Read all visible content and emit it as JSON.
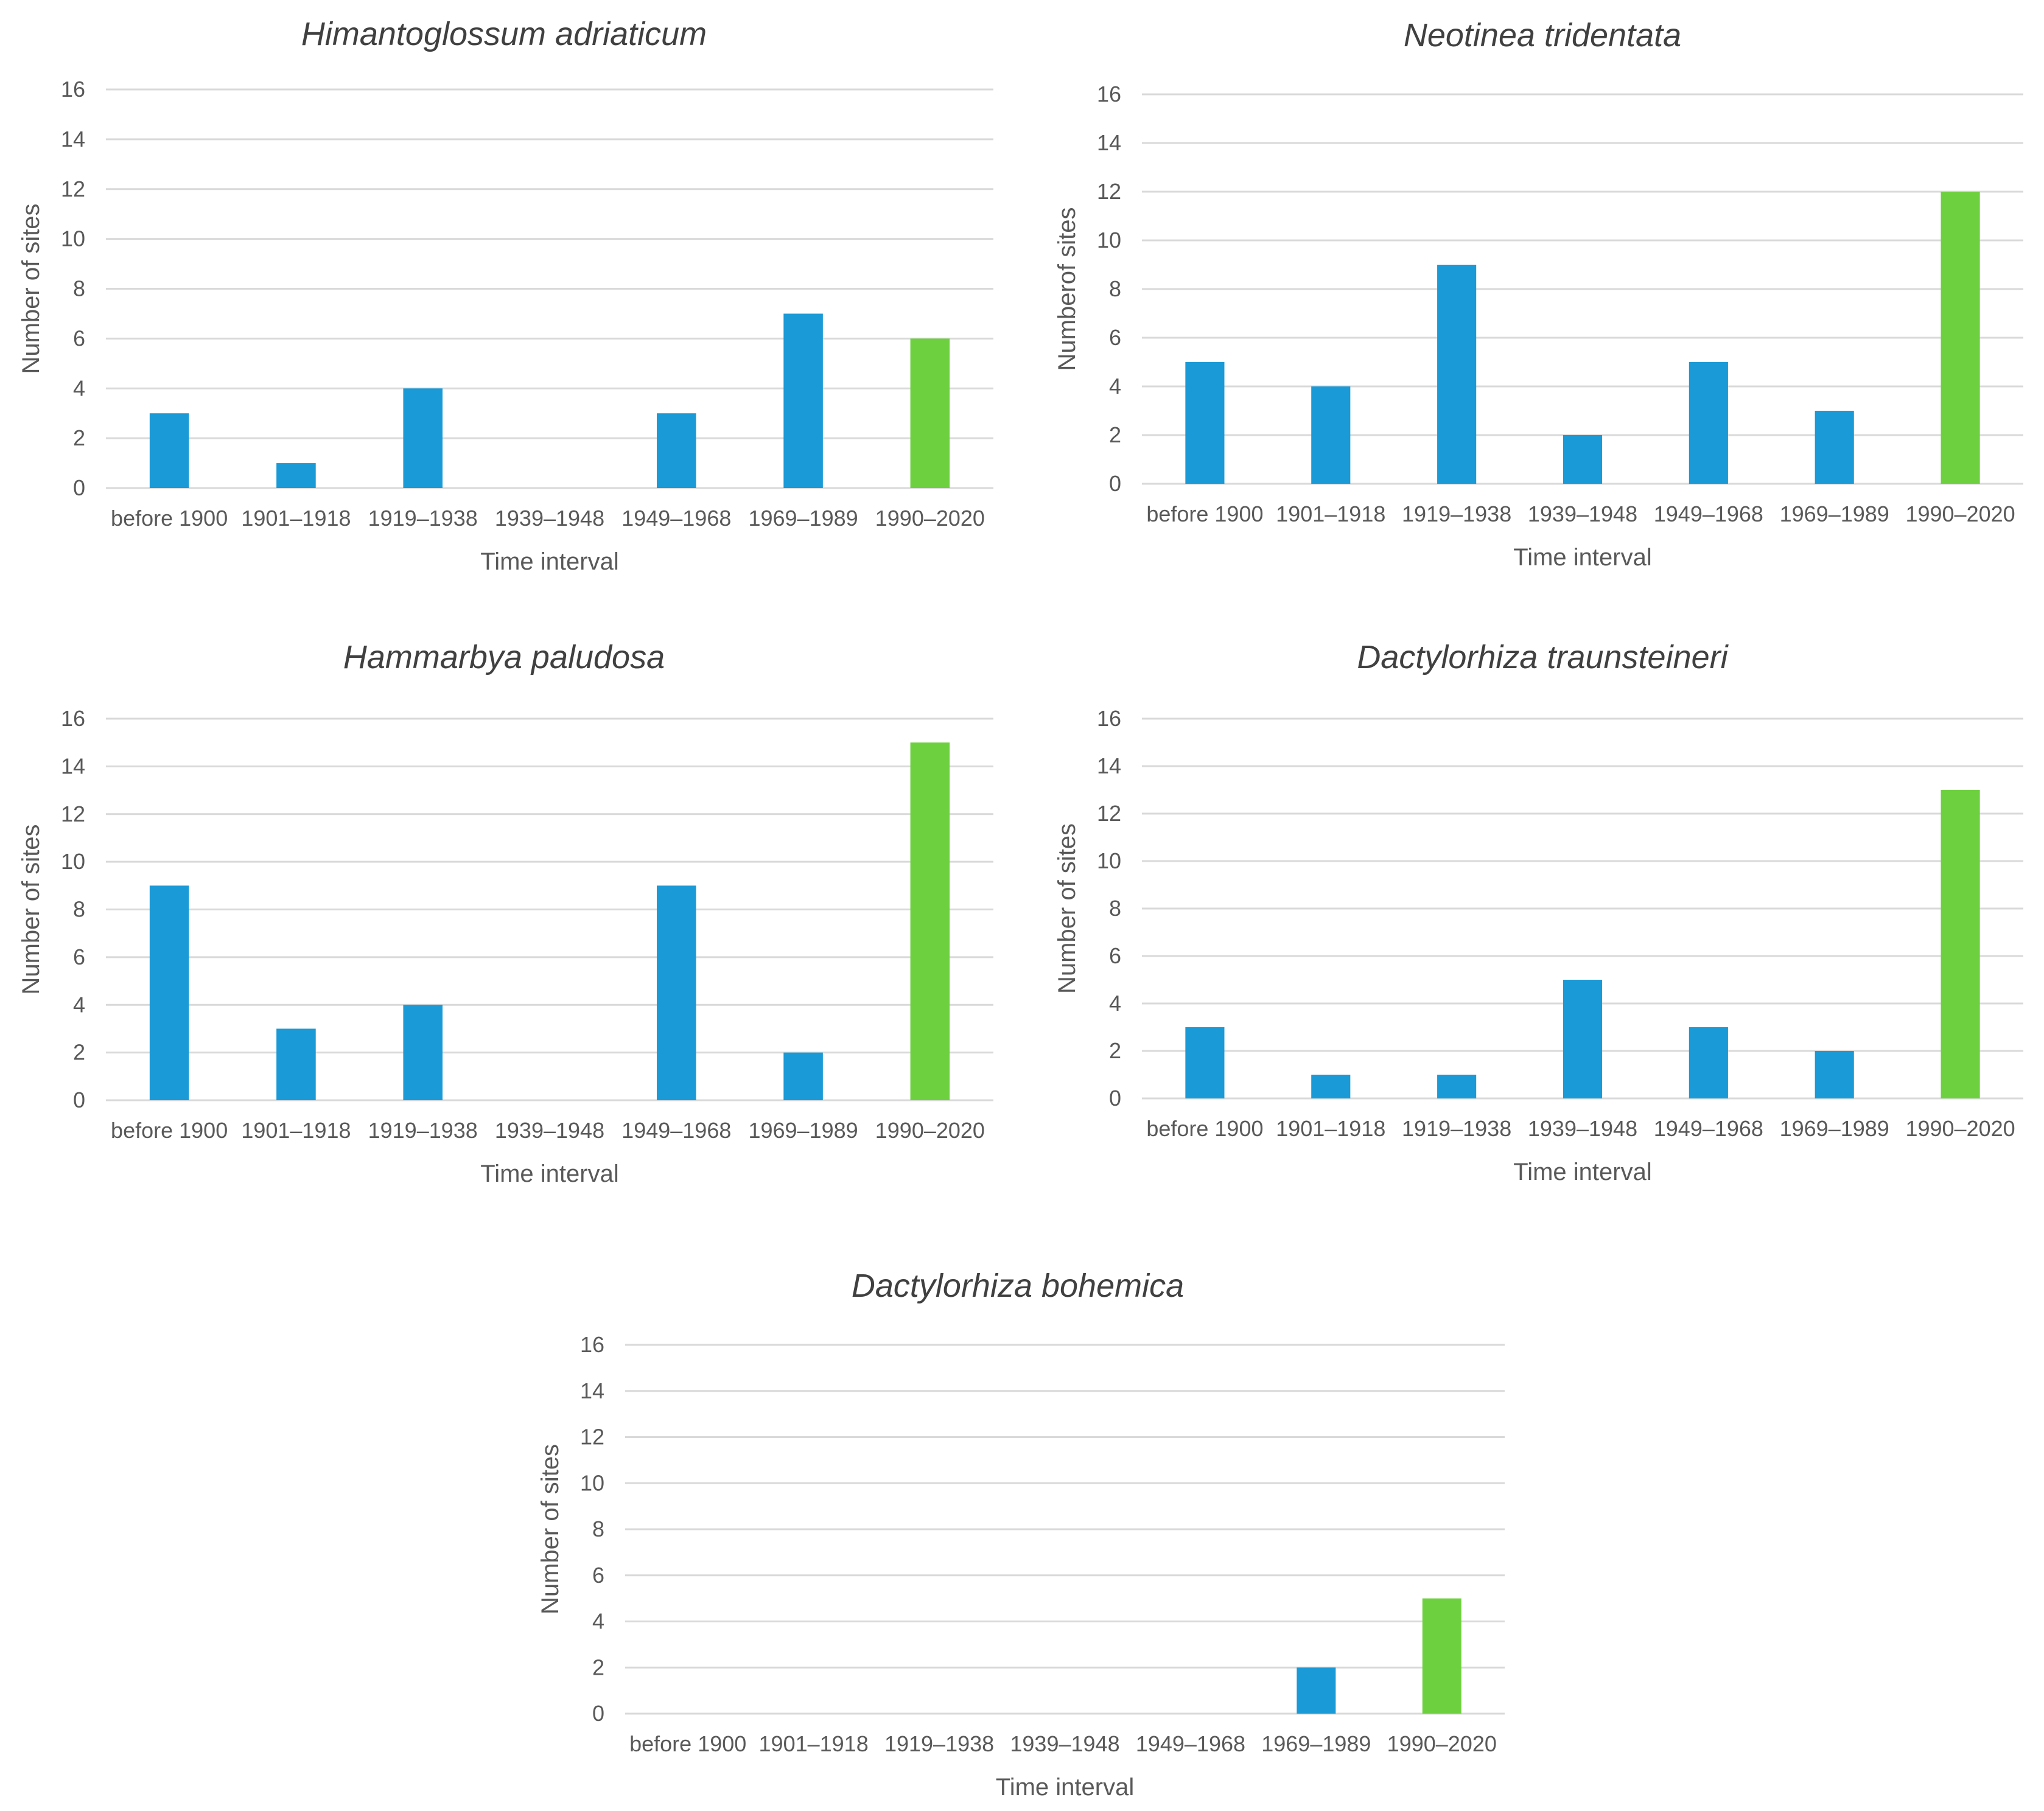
{
  "chart_data": [
    {
      "type": "bar",
      "title": "Himantoglossum adriaticum",
      "xlabel": "Time interval",
      "ylabel": "Number of sites",
      "ylim": [
        0,
        16
      ],
      "yticks": [
        "0",
        "2",
        "4",
        "6",
        "8",
        "10",
        "12",
        "14",
        "16"
      ],
      "categories": [
        "before 1900",
        "1901–1918",
        "1919–1938",
        "1939–1948",
        "1949–1968",
        "1969–1989",
        "1990–2020"
      ],
      "values": [
        3,
        1,
        4,
        0,
        3,
        7,
        6
      ],
      "colors": [
        "#1a9ad6",
        "#1a9ad6",
        "#1a9ad6",
        "#1a9ad6",
        "#1a9ad6",
        "#1a9ad6",
        "#6dd13f"
      ]
    },
    {
      "type": "bar",
      "title": "Neotinea tridentata",
      "xlabel": "Time interval",
      "ylabel": "Numberof sites",
      "ylim": [
        0,
        16
      ],
      "yticks": [
        "0",
        "2",
        "4",
        "6",
        "8",
        "10",
        "12",
        "14",
        "16"
      ],
      "categories": [
        "before 1900",
        "1901–1918",
        "1919–1938",
        "1939–1948",
        "1949–1968",
        "1969–1989",
        "1990–2020"
      ],
      "values": [
        5,
        4,
        9,
        2,
        5,
        3,
        12
      ],
      "colors": [
        "#1a9ad6",
        "#1a9ad6",
        "#1a9ad6",
        "#1a9ad6",
        "#1a9ad6",
        "#1a9ad6",
        "#6dd13f"
      ]
    },
    {
      "type": "bar",
      "title": "Hammarbya paludosa",
      "xlabel": "Time interval",
      "ylabel": "Number of sites",
      "ylim": [
        0,
        16
      ],
      "yticks": [
        "0",
        "2",
        "4",
        "6",
        "8",
        "10",
        "12",
        "14",
        "16"
      ],
      "categories": [
        "before 1900",
        "1901–1918",
        "1919–1938",
        "1939–1948",
        "1949–1968",
        "1969–1989",
        "1990–2020"
      ],
      "values": [
        9,
        3,
        4,
        0,
        9,
        2,
        15
      ],
      "colors": [
        "#1a9ad6",
        "#1a9ad6",
        "#1a9ad6",
        "#1a9ad6",
        "#1a9ad6",
        "#1a9ad6",
        "#6dd13f"
      ]
    },
    {
      "type": "bar",
      "title": "Dactylorhiza traunsteineri",
      "xlabel": "Time interval",
      "ylabel": "Number of sites",
      "ylim": [
        0,
        16
      ],
      "yticks": [
        "0",
        "2",
        "4",
        "6",
        "8",
        "10",
        "12",
        "14",
        "16"
      ],
      "categories": [
        "before 1900",
        "1901–1918",
        "1919–1938",
        "1939–1948",
        "1949–1968",
        "1969–1989",
        "1990–2020"
      ],
      "values": [
        3,
        1,
        1,
        5,
        3,
        2,
        13
      ],
      "colors": [
        "#1a9ad6",
        "#1a9ad6",
        "#1a9ad6",
        "#1a9ad6",
        "#1a9ad6",
        "#1a9ad6",
        "#6dd13f"
      ]
    },
    {
      "type": "bar",
      "title": "Dactylorhiza bohemica",
      "xlabel": "Time interval",
      "ylabel": "Number of sites",
      "ylim": [
        0,
        16
      ],
      "yticks": [
        "0",
        "2",
        "4",
        "6",
        "8",
        "10",
        "12",
        "14",
        "16"
      ],
      "categories": [
        "before 1900",
        "1901–1918",
        "1919–1938",
        "1939–1948",
        "1949–1968",
        "1969–1989",
        "1990–2020"
      ],
      "values": [
        0,
        0,
        0,
        0,
        0,
        2,
        5
      ],
      "colors": [
        "#1a9ad6",
        "#1a9ad6",
        "#1a9ad6",
        "#1a9ad6",
        "#1a9ad6",
        "#1a9ad6",
        "#6dd13f"
      ]
    }
  ]
}
